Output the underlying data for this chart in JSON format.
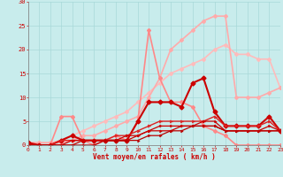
{
  "xlabel": "Vent moyen/en rafales ( km/h )",
  "ylim": [
    0,
    30
  ],
  "xlim": [
    0,
    23
  ],
  "yticks": [
    0,
    5,
    10,
    15,
    20,
    25,
    30
  ],
  "xticks": [
    0,
    1,
    2,
    3,
    4,
    5,
    6,
    7,
    8,
    9,
    10,
    11,
    12,
    13,
    14,
    15,
    16,
    17,
    18,
    19,
    20,
    21,
    22,
    23
  ],
  "bg_color": "#c8ecec",
  "grid_color": "#a8d8d8",
  "series": [
    {
      "x": [
        0,
        1,
        2,
        3,
        4,
        5,
        6,
        7,
        8,
        9,
        10,
        11,
        12,
        13,
        14,
        15,
        16,
        17,
        18,
        19,
        20,
        21,
        22,
        23
      ],
      "y": [
        0.5,
        0.5,
        0.5,
        1,
        2,
        3,
        4,
        5,
        6,
        7,
        9,
        11,
        13,
        15,
        16,
        17,
        18,
        20,
        21,
        19,
        19,
        18,
        18,
        12
      ],
      "color": "#ffbbbb",
      "lw": 1.2,
      "marker": "D",
      "ms": 2.0
    },
    {
      "x": [
        0,
        1,
        2,
        3,
        4,
        5,
        6,
        7,
        8,
        9,
        10,
        11,
        12,
        13,
        14,
        15,
        16,
        17,
        18,
        19,
        20,
        21,
        22,
        23
      ],
      "y": [
        0.5,
        0.5,
        0.5,
        0.5,
        1,
        2,
        2,
        3,
        4,
        5,
        6,
        10,
        14,
        20,
        22,
        24,
        26,
        27,
        27,
        10,
        10,
        10,
        11,
        12
      ],
      "color": "#ffaaaa",
      "lw": 1.2,
      "marker": "D",
      "ms": 2.0
    },
    {
      "x": [
        0,
        1,
        2,
        3,
        4,
        5,
        6,
        7,
        8,
        9,
        10,
        11,
        12,
        13,
        14,
        15,
        16,
        17,
        18,
        19,
        20,
        21,
        22,
        23
      ],
      "y": [
        0,
        0,
        0,
        6,
        6,
        1,
        0,
        1,
        2,
        1,
        5,
        24,
        14,
        9,
        9,
        8,
        4,
        3,
        2,
        0,
        0,
        0,
        0,
        0
      ],
      "color": "#ff8888",
      "lw": 1.2,
      "marker": "D",
      "ms": 2.0
    },
    {
      "x": [
        0,
        1,
        2,
        3,
        4,
        5,
        6,
        7,
        8,
        9,
        10,
        11,
        12,
        13,
        14,
        15,
        16,
        17,
        18,
        19,
        20,
        21,
        22,
        23
      ],
      "y": [
        0.5,
        0,
        0,
        1,
        2,
        1,
        1,
        1,
        1,
        1,
        5,
        9,
        9,
        9,
        8,
        13,
        14,
        7,
        4,
        4,
        4,
        4,
        6,
        3
      ],
      "color": "#cc0000",
      "lw": 1.5,
      "marker": "D",
      "ms": 2.5
    },
    {
      "x": [
        0,
        1,
        2,
        3,
        4,
        5,
        6,
        7,
        8,
        9,
        10,
        11,
        12,
        13,
        14,
        15,
        16,
        17,
        18,
        19,
        20,
        21,
        22,
        23
      ],
      "y": [
        0,
        0,
        0,
        1,
        1,
        1,
        1,
        1,
        2,
        2,
        3,
        4,
        5,
        5,
        5,
        5,
        5,
        6,
        4,
        4,
        4,
        4,
        5,
        3
      ],
      "color": "#dd2222",
      "lw": 1.0,
      "marker": "4",
      "ms": 3.0
    },
    {
      "x": [
        0,
        1,
        2,
        3,
        4,
        5,
        6,
        7,
        8,
        9,
        10,
        11,
        12,
        13,
        14,
        15,
        16,
        17,
        18,
        19,
        20,
        21,
        22,
        23
      ],
      "y": [
        0,
        0,
        0,
        0,
        1,
        1,
        1,
        1,
        1,
        2,
        2,
        3,
        4,
        4,
        4,
        4,
        5,
        5,
        3,
        3,
        3,
        3,
        4,
        3
      ],
      "color": "#cc0000",
      "lw": 0.9,
      "marker": "4",
      "ms": 2.5
    },
    {
      "x": [
        0,
        1,
        2,
        3,
        4,
        5,
        6,
        7,
        8,
        9,
        10,
        11,
        12,
        13,
        14,
        15,
        16,
        17,
        18,
        19,
        20,
        21,
        22,
        23
      ],
      "y": [
        0,
        0,
        0,
        0,
        0,
        1,
        1,
        1,
        1,
        1,
        2,
        3,
        3,
        3,
        4,
        4,
        4,
        4,
        3,
        3,
        3,
        3,
        3,
        3
      ],
      "color": "#cc0000",
      "lw": 0.9,
      "marker": "4",
      "ms": 2.5
    },
    {
      "x": [
        0,
        1,
        2,
        3,
        4,
        5,
        6,
        7,
        8,
        9,
        10,
        11,
        12,
        13,
        14,
        15,
        16,
        17,
        18,
        19,
        20,
        21,
        22,
        23
      ],
      "y": [
        0,
        0,
        0,
        0,
        0,
        0,
        0,
        1,
        1,
        1,
        1,
        2,
        2,
        3,
        3,
        4,
        4,
        4,
        3,
        3,
        3,
        3,
        3,
        3
      ],
      "color": "#bb0000",
      "lw": 0.9,
      "marker": "4",
      "ms": 2.5
    }
  ]
}
